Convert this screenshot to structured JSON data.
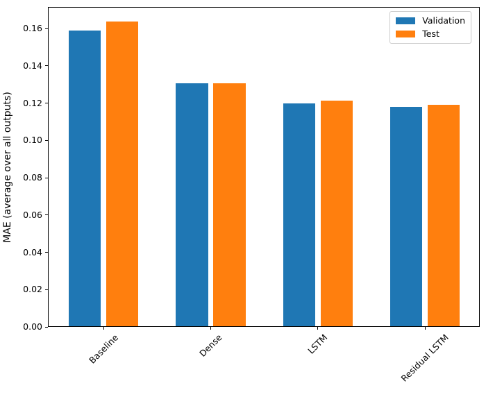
{
  "chart_data": {
    "type": "bar",
    "categories": [
      "Baseline",
      "Dense",
      "LSTM",
      "Residual LSTM"
    ],
    "series": [
      {
        "name": "Validation",
        "color": "#1f77b4",
        "values": [
          0.1588,
          0.1307,
          0.12,
          0.1181
        ]
      },
      {
        "name": "Test",
        "color": "#ff7f0e",
        "values": [
          0.1638,
          0.1307,
          0.1215,
          0.1192
        ]
      }
    ],
    "title": "",
    "xlabel": "",
    "ylabel": "MAE (average over all outputs)",
    "ylim": [
      0,
      0.1716
    ],
    "yticks": [
      0.0,
      0.02,
      0.04,
      0.06,
      0.08,
      0.1,
      0.12,
      0.14,
      0.16
    ],
    "ytick_decimals": 2,
    "xlim": [
      -0.52,
      3.51
    ],
    "bar_width": 0.3,
    "bar_offset": 0.175,
    "xtick_rotation": 45,
    "grid": false,
    "legend": {
      "location": "upper right"
    },
    "colors": {
      "background": "#ffffff",
      "spine": "#000000",
      "legend_border": "#cccccc"
    }
  }
}
